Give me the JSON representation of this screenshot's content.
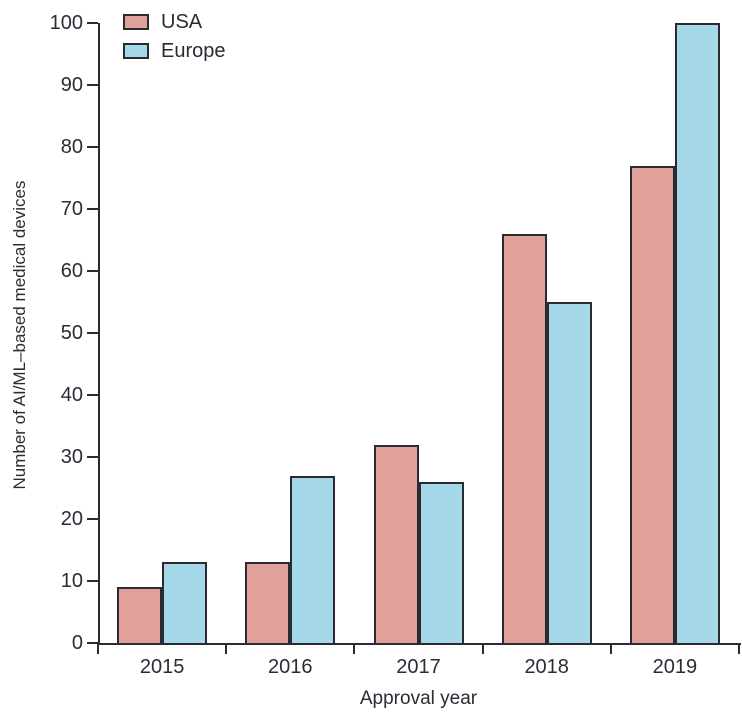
{
  "figure": {
    "xlabel": "Approval year",
    "ylabel": "Number of AI/ML–based medical devices"
  },
  "legend": {
    "items": [
      {
        "label": "USA",
        "color": "#E2A09A"
      },
      {
        "label": "Europe",
        "color": "#A5D8E8"
      }
    ]
  },
  "chart_data": {
    "type": "bar",
    "categories": [
      "2015",
      "2016",
      "2017",
      "2018",
      "2019"
    ],
    "series": [
      {
        "name": "USA",
        "color": "#E2A09A",
        "values": [
          9,
          13,
          32,
          66,
          77
        ]
      },
      {
        "name": "Europe",
        "color": "#A5D8E8",
        "values": [
          13,
          27,
          26,
          55,
          100
        ]
      }
    ],
    "title": "",
    "xlabel": "Approval year",
    "ylabel": "Number of AI/ML–based medical devices",
    "ylim": [
      0,
      100
    ],
    "ytick_step": 10,
    "ytick_labels": [
      "0",
      "10",
      "20",
      "30",
      "40",
      "50",
      "60",
      "70",
      "80",
      "90",
      "100"
    ],
    "legend_position": "top-left",
    "grid": false,
    "bar_border_color": "#2a2a33",
    "axis_color": "#2b2b36",
    "text_color": "#2b2b36"
  }
}
